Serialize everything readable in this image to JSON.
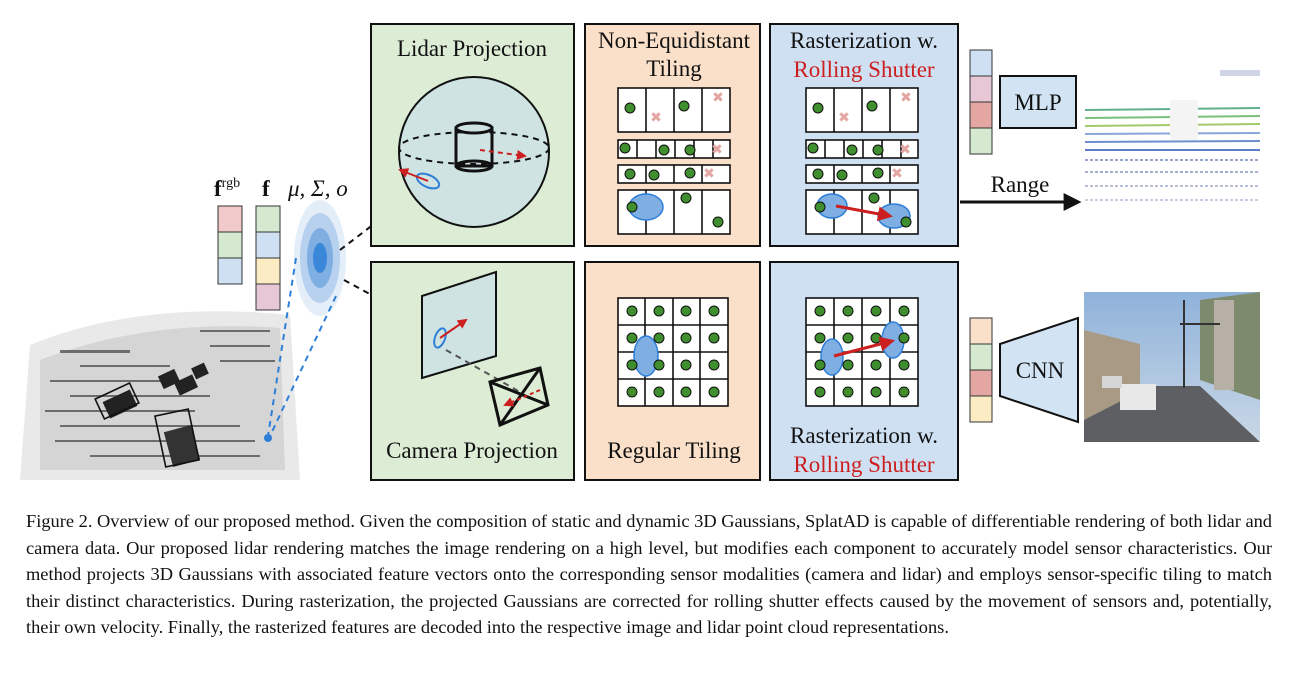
{
  "diagram": {
    "features": {
      "f_rgb": "f",
      "f_rgb_sup": "rgb",
      "f": "f",
      "gaussian_params": "μ, Σ, o"
    },
    "panels": {
      "lidar_projection": "Lidar Projection",
      "camera_projection": "Camera Projection",
      "non_equidistant_tiling_1": "Non-Equidistant",
      "non_equidistant_tiling_2": "Tiling",
      "regular_tiling": "Regular Tiling",
      "raster_top_1": "Rasterization w.",
      "raster_top_2": "Rolling Shutter",
      "raster_bottom_1": "Rasterization w.",
      "raster_bottom_2": "Rolling Shutter"
    },
    "decoders": {
      "mlp": "MLP",
      "cnn": "CNN"
    },
    "range_label": "Range",
    "colors": {
      "projection_bg": "#dcecd5",
      "tiling_bg": "#fbe0c9",
      "raster_bg": "#cfe0f3",
      "decoder_bg": "#d2e3f4",
      "accent_red": "#cc1f1f",
      "gaussian_blue": "#3a86d8",
      "point_green": "#3f8f2e",
      "feature_pink": "#f1c9cb",
      "feature_green": "#d5e9d0",
      "feature_blue": "#cfe0f3",
      "feature_yellow": "#fbecc3",
      "feature_mauve": "#e7c7d6",
      "feature_rose": "#e4a6a2"
    }
  },
  "caption": {
    "label": "Figure 2.",
    "text": "Overview of our proposed method. Given the composition of static and dynamic 3D Gaussians, SplatAD is capable of differentiable rendering of both lidar and camera data. Our proposed lidar rendering matches the image rendering on a high level, but modifies each component to accurately model sensor characteristics. Our method projects 3D Gaussians with associated feature vectors onto the corresponding sensor modalities (camera and lidar) and employs sensor-specific tiling to match their distinct characteristics. During rasterization, the projected Gaussians are corrected for rolling shutter effects caused by the movement of sensors and, potentially, their own velocity. Finally, the rasterized features are decoded into the respective image and lidar point cloud representations."
  }
}
